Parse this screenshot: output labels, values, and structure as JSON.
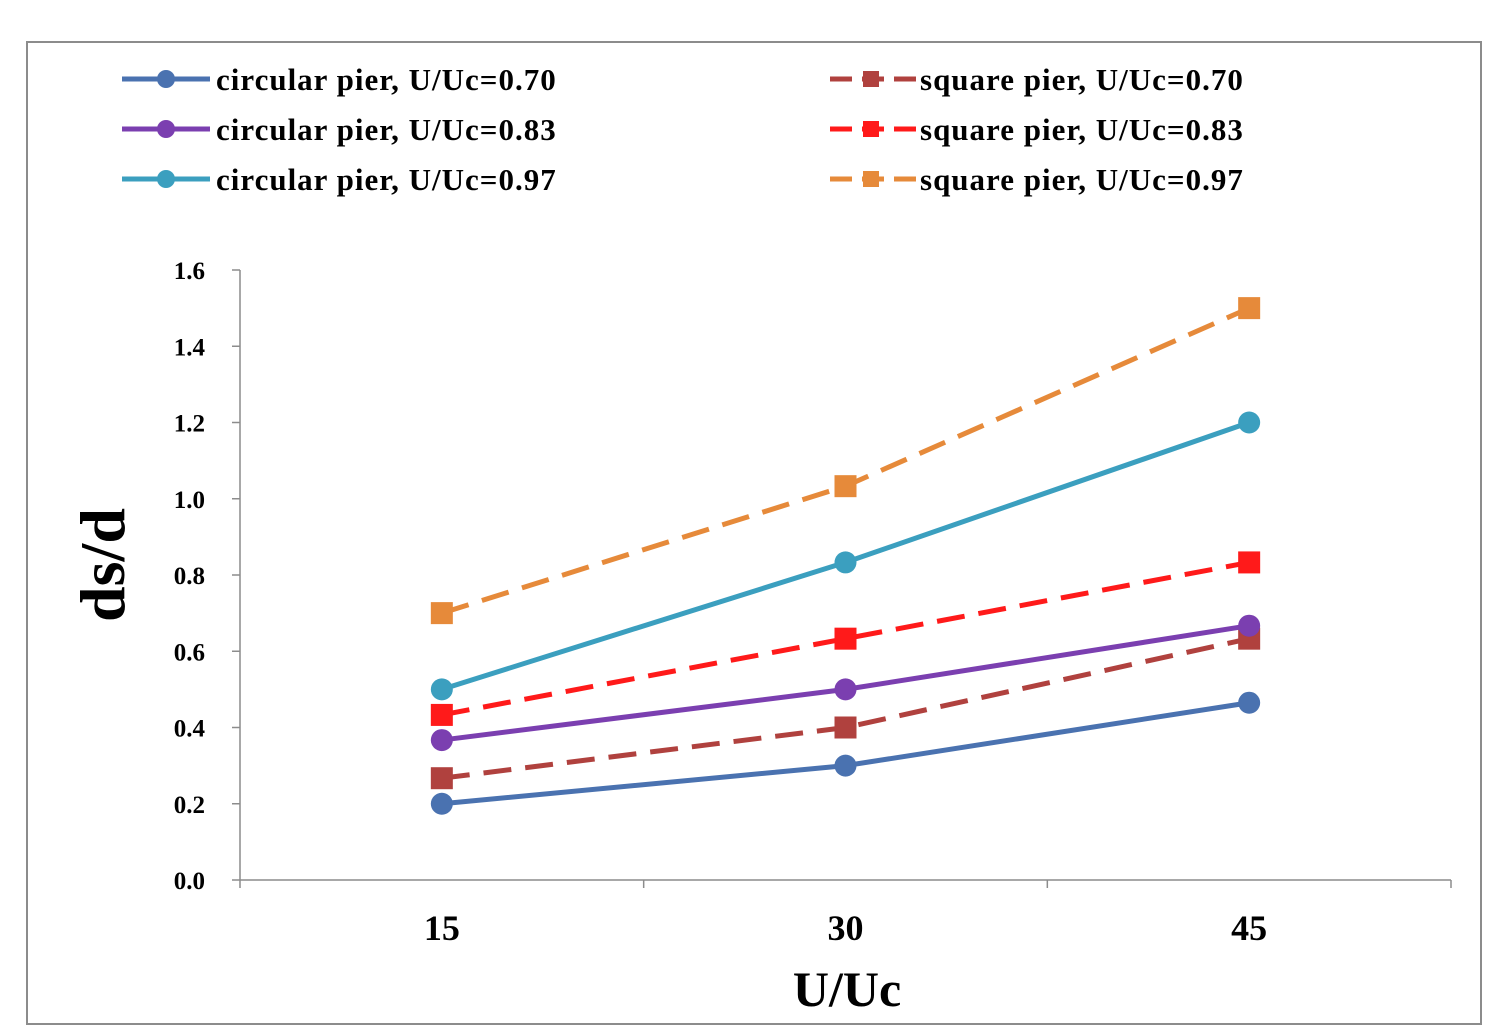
{
  "chart_data": {
    "type": "line",
    "title": "",
    "xlabel": "U/Uc",
    "ylabel": "ds/d",
    "categories": [
      "15",
      "30",
      "45"
    ],
    "ylim": [
      0,
      1.6
    ],
    "yticks": [
      "0.0",
      "0.2",
      "0.4",
      "0.6",
      "0.8",
      "1.0",
      "1.2",
      "1.4",
      "1.6"
    ],
    "grid": false,
    "legend_position": "top",
    "series": [
      {
        "name": "circular pier, U/Uc=0.70",
        "values": [
          0.2,
          0.3,
          0.465
        ],
        "color": "#4a72b0",
        "marker": "circle",
        "dashed": false
      },
      {
        "name": "square pier, U/Uc=0.70",
        "values": [
          0.267,
          0.4,
          0.633
        ],
        "color": "#b0413e",
        "marker": "square",
        "dashed": true
      },
      {
        "name": "circular pier, U/Uc=0.83",
        "values": [
          0.367,
          0.5,
          0.667
        ],
        "color": "#7b3fb0",
        "marker": "circle",
        "dashed": false
      },
      {
        "name": "square pier, U/Uc=0.83",
        "values": [
          0.433,
          0.633,
          0.833
        ],
        "color": "#ff1a1a",
        "marker": "square",
        "dashed": true
      },
      {
        "name": "circular pier, U/Uc=0.97",
        "values": [
          0.5,
          0.833,
          1.2
        ],
        "color": "#3b9fbf",
        "marker": "circle",
        "dashed": false
      },
      {
        "name": "square pier, U/Uc=0.97",
        "values": [
          0.7,
          1.033,
          1.5
        ],
        "color": "#e68a3a",
        "marker": "square",
        "dashed": true
      }
    ]
  }
}
